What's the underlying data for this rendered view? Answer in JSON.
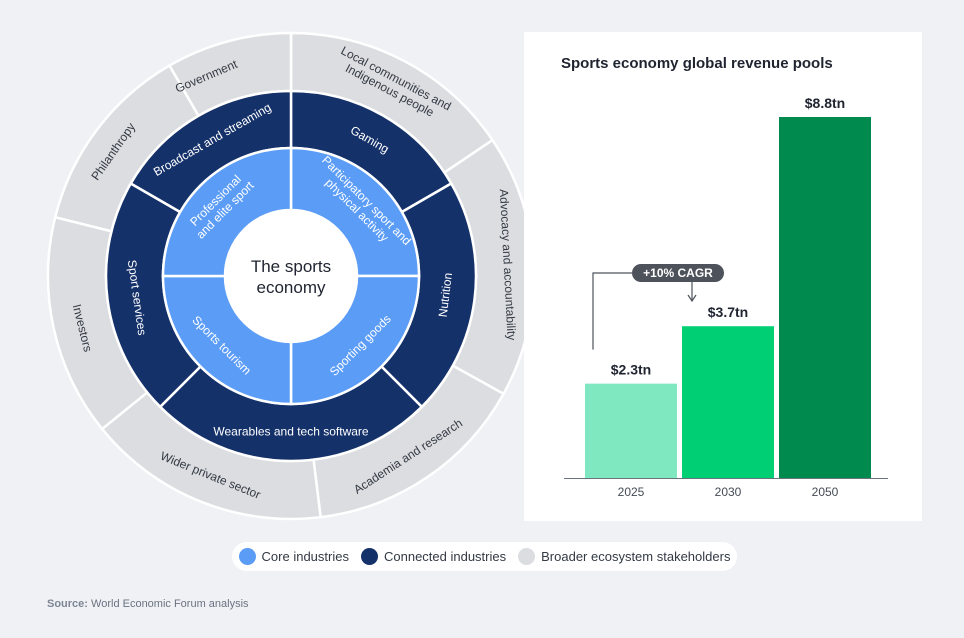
{
  "colors": {
    "core": "#5b9cf6",
    "connected": "#15316a",
    "broader": "#dcdde0",
    "center": "#ffffff",
    "bar_2025": "#80e8c0",
    "bar_2030": "#00cf74",
    "bar_2050": "#008a4d",
    "cagr_badge": "#4e535b"
  },
  "wheel": {
    "center_label": [
      "The sports",
      "economy"
    ],
    "core_industries": [
      {
        "label": [
          "Participatory sport and",
          "physical activity"
        ]
      },
      {
        "label": [
          "Sporting goods"
        ]
      },
      {
        "label": [
          "Sports tourism"
        ]
      },
      {
        "label": [
          "Professional",
          "and elite sport"
        ]
      }
    ],
    "connected_industries": [
      {
        "label": [
          "Gaming"
        ]
      },
      {
        "label": [
          "Nutrition"
        ]
      },
      {
        "label": [
          "Wearables and tech software"
        ]
      },
      {
        "label": [
          "Sport services"
        ]
      },
      {
        "label": [
          "Broadcast and streaming"
        ]
      }
    ],
    "broader_stakeholders": [
      {
        "label": [
          "Local communities and",
          "Indigenous people"
        ]
      },
      {
        "label": [
          "Advocacy and accountability"
        ]
      },
      {
        "label": [
          "Academia and research"
        ]
      },
      {
        "label": [
          "Wider private sector"
        ]
      },
      {
        "label": [
          "Investors"
        ]
      },
      {
        "label": [
          "Philanthropy"
        ]
      },
      {
        "label": [
          "Government"
        ]
      }
    ]
  },
  "chart_data": {
    "type": "bar",
    "title": "Sports economy global revenue pools",
    "categories": [
      "2025",
      "2030",
      "2050"
    ],
    "values": [
      2.3,
      3.7,
      8.8
    ],
    "data_labels": [
      "$2.3tn",
      "$3.7tn",
      "$8.8tn"
    ],
    "unit": "tn",
    "ylim": [
      0,
      8.8
    ],
    "annotation": "+10% CAGR",
    "grid": false,
    "legend": "none"
  },
  "legend": [
    {
      "label": "Core industries",
      "color": "#5b9cf6"
    },
    {
      "label": "Connected industries",
      "color": "#15316a"
    },
    {
      "label": "Broader ecosystem stakeholders",
      "color": "#dcdde0"
    }
  ],
  "source": {
    "prefix": "Source:",
    "text": "World Economic Forum analysis"
  }
}
